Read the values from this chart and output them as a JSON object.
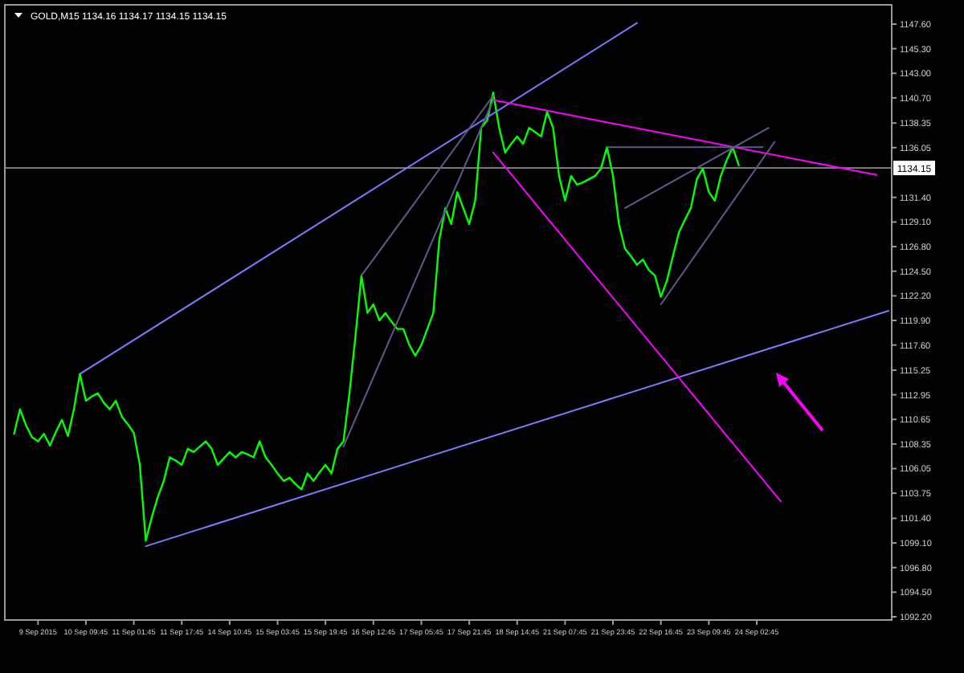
{
  "chart_data": {
    "type": "line",
    "title": "GOLD,M15  1134.16 1134.17 1134.15 1134.15",
    "ylim": [
      1091.9,
      1149.4
    ],
    "categories": [
      null,
      null,
      null,
      null,
      null,
      "9 Sep 2015",
      null,
      null,
      null,
      null,
      null,
      null,
      null,
      "10 Sep 09:45",
      null,
      null,
      null,
      null,
      null,
      null,
      null,
      "11 Sep 01:45",
      null,
      null,
      null,
      null,
      null,
      null,
      null,
      "11 Sep 17:45",
      null,
      null,
      null,
      null,
      null,
      null,
      null,
      "14 Sep 10:45",
      null,
      null,
      null,
      null,
      null,
      null,
      null,
      "15 Sep 03:45",
      null,
      null,
      null,
      null,
      null,
      null,
      null,
      "15 Sep 19:45",
      null,
      null,
      null,
      null,
      null,
      null,
      null,
      "16 Sep 12:45",
      null,
      null,
      null,
      null,
      null,
      null,
      null,
      "17 Sep 05:45",
      null,
      null,
      null,
      null,
      null,
      null,
      null,
      "17 Sep 21:45",
      null,
      null,
      null,
      null,
      null,
      null,
      null,
      "18 Sep 14:45",
      null,
      null,
      null,
      null,
      null,
      null,
      null,
      "21 Sep 07:45",
      null,
      null,
      null,
      null,
      null,
      null,
      null,
      "21 Sep 23:45",
      null,
      null,
      null,
      null,
      null,
      null,
      null,
      "22 Sep 16:45",
      null,
      null,
      null,
      null,
      null,
      null,
      null,
      "23 Sep 09:45",
      null,
      null,
      null,
      null,
      null,
      null,
      null,
      "24 Sep 02:45",
      null,
      null,
      null,
      null,
      null,
      null,
      null,
      null,
      null,
      null,
      null,
      null,
      null,
      null,
      null,
      null,
      null,
      null,
      null,
      null,
      null,
      null
    ],
    "yticks": [
      {
        "value": 1147.6,
        "label": "1147.60"
      },
      {
        "value": 1145.3,
        "label": "1145.30"
      },
      {
        "value": 1143,
        "label": "1143.00"
      },
      {
        "value": 1140.7,
        "label": "1140.70"
      },
      {
        "value": 1138.35,
        "label": "1138.35"
      },
      {
        "value": 1136.05,
        "label": "1136.05"
      },
      {
        "value": 1131.4,
        "label": "1131.40"
      },
      {
        "value": 1129.1,
        "label": "1129.10"
      },
      {
        "value": 1126.8,
        "label": "1126.80"
      },
      {
        "value": 1124.5,
        "label": "1124.50"
      },
      {
        "value": 1122.2,
        "label": "1122.20"
      },
      {
        "value": 1119.9,
        "label": "1119.90"
      },
      {
        "value": 1117.6,
        "label": "1117.60"
      },
      {
        "value": 1115.25,
        "label": "1115.25"
      },
      {
        "value": 1112.95,
        "label": "1112.95"
      },
      {
        "value": 1110.65,
        "label": "1110.65"
      },
      {
        "value": 1108.35,
        "label": "1108.35"
      },
      {
        "value": 1106.05,
        "label": "1106.05"
      },
      {
        "value": 1103.75,
        "label": "1103.75"
      },
      {
        "value": 1101.4,
        "label": "1101.40"
      },
      {
        "value": 1099.1,
        "label": "1099.10"
      },
      {
        "value": 1096.8,
        "label": "1096.80"
      },
      {
        "value": 1094.5,
        "label": "1094.50"
      },
      {
        "value": 1092.2,
        "label": "1092.20"
      }
    ],
    "ref_lines": [
      {
        "axis": "y",
        "value": 1134.15,
        "label": "1134.15",
        "color": "#8c8c8c"
      }
    ],
    "series": [
      {
        "color": "#00ff00",
        "values": [
          null,
          1109.3,
          1111.6,
          1110.1,
          1109.0,
          1108.6,
          1109.3,
          1108.2,
          1109.5,
          1110.6,
          1109.1,
          1111.6,
          1114.9,
          1112.4,
          1112.8,
          1113.1,
          1112.2,
          1111.6,
          1112.4,
          1110.9,
          1110.2,
          1109.4,
          1106.4,
          1099.3,
          1101.5,
          1103.4,
          1104.9,
          1107.1,
          1106.8,
          1106.4,
          1107.9,
          1107.6,
          1108.1,
          1108.6,
          1107.9,
          1106.4,
          1107.0,
          1107.6,
          1107.1,
          1107.6,
          1107.4,
          1107.1,
          1108.6,
          1107.1,
          1106.4,
          1105.6,
          1104.9,
          1105.2,
          1104.6,
          1104.1,
          1105.6,
          1104.9,
          1105.7,
          1106.4,
          1105.6,
          1107.9,
          1108.6,
          1113.1,
          1118.4,
          1124.1,
          1120.6,
          1121.4,
          1119.9,
          1120.6,
          1119.8,
          1119.1,
          1119.1,
          1117.6,
          1116.6,
          1117.6,
          1119.1,
          1120.6,
          1127.4,
          1130.4,
          1128.9,
          1131.9,
          1130.4,
          1128.9,
          1131.1,
          1137.9,
          1138.6,
          1141.2,
          1137.9,
          1135.6,
          1136.4,
          1137.1,
          1136.4,
          1137.9,
          1137.5,
          1137.1,
          1139.4,
          1137.9,
          1133.4,
          1131.1,
          1133.4,
          1132.6,
          1132.8,
          1133.1,
          1133.4,
          1134.1,
          1136.1,
          1133.4,
          1128.9,
          1126.6,
          1125.9,
          1125.1,
          1125.6,
          1124.6,
          1124.1,
          1122.1,
          1123.6,
          1125.9,
          1128.1,
          1129.3,
          1130.4,
          1133.1,
          1134.1,
          1131.9,
          1131.1,
          1133.4,
          1134.9,
          1136.1,
          1134.4,
          null,
          null,
          null,
          null,
          null,
          null,
          null,
          null,
          null,
          null,
          null,
          null,
          null,
          null,
          null,
          null,
          null,
          null,
          null,
          null,
          null,
          null,
          null,
          null,
          null
        ]
      },
      {
        "color": "#7b7bff",
        "values": [
          null,
          null,
          null,
          null,
          null,
          null,
          null,
          null,
          null,
          null,
          null,
          null,
          1114.9,
          null,
          null,
          null,
          null,
          null,
          null,
          null,
          null,
          null,
          null,
          null,
          null,
          null,
          null,
          null,
          null,
          null,
          null,
          null,
          null,
          null,
          null,
          null,
          null,
          null,
          null,
          null,
          null,
          null,
          null,
          null,
          null,
          null,
          null,
          null,
          null,
          null,
          null,
          null,
          null,
          null,
          null,
          null,
          null,
          null,
          null,
          null,
          null,
          null,
          null,
          null,
          null,
          null,
          null,
          null,
          null,
          null,
          null,
          null,
          null,
          null,
          null,
          null,
          null,
          null,
          null,
          null,
          null,
          null,
          null,
          null,
          null,
          null,
          null,
          null,
          null,
          null,
          null,
          null,
          null,
          null,
          null,
          null,
          null,
          null,
          null,
          null,
          null,
          null,
          null,
          null,
          null,
          1147.7,
          null,
          null,
          null,
          null,
          null,
          null,
          null,
          null,
          null,
          null,
          null,
          null,
          null,
          null,
          null,
          null,
          null,
          null,
          null,
          null,
          null,
          null,
          null,
          null,
          null,
          null,
          null,
          null,
          null,
          null,
          null,
          null,
          null,
          null,
          null,
          null,
          null,
          null,
          null,
          null,
          null,
          null
        ]
      },
      {
        "color": "#7b7bff",
        "values": [
          null,
          null,
          null,
          null,
          null,
          null,
          null,
          null,
          null,
          null,
          null,
          null,
          null,
          null,
          null,
          null,
          null,
          null,
          null,
          null,
          null,
          null,
          null,
          1098.8,
          null,
          null,
          null,
          null,
          null,
          null,
          null,
          null,
          null,
          null,
          null,
          null,
          null,
          null,
          null,
          null,
          null,
          null,
          null,
          null,
          null,
          null,
          null,
          null,
          null,
          null,
          null,
          null,
          null,
          null,
          null,
          null,
          null,
          null,
          null,
          null,
          null,
          null,
          null,
          null,
          null,
          null,
          null,
          null,
          null,
          null,
          null,
          null,
          null,
          null,
          null,
          null,
          null,
          null,
          null,
          null,
          null,
          null,
          null,
          null,
          null,
          null,
          null,
          null,
          null,
          null,
          null,
          null,
          null,
          null,
          null,
          null,
          null,
          null,
          null,
          null,
          null,
          null,
          null,
          null,
          null,
          null,
          null,
          null,
          null,
          null,
          null,
          null,
          null,
          null,
          null,
          null,
          null,
          null,
          null,
          null,
          null,
          null,
          null,
          null,
          null,
          null,
          null,
          null,
          null,
          null,
          null,
          null,
          null,
          null,
          null,
          null,
          null,
          null,
          null,
          null,
          null,
          null,
          null,
          null,
          null,
          null,
          null,
          1120.8
        ]
      },
      {
        "color": "#ff00ff",
        "values": [
          null,
          null,
          null,
          null,
          null,
          null,
          null,
          null,
          null,
          null,
          null,
          null,
          null,
          null,
          null,
          null,
          null,
          null,
          null,
          null,
          null,
          null,
          null,
          null,
          null,
          null,
          null,
          null,
          null,
          null,
          null,
          null,
          null,
          null,
          null,
          null,
          null,
          null,
          null,
          null,
          null,
          null,
          null,
          null,
          null,
          null,
          null,
          null,
          null,
          null,
          null,
          null,
          null,
          null,
          null,
          null,
          null,
          null,
          null,
          null,
          null,
          null,
          null,
          null,
          null,
          null,
          null,
          null,
          null,
          null,
          null,
          null,
          null,
          null,
          null,
          null,
          null,
          null,
          null,
          null,
          null,
          1140.5,
          null,
          null,
          null,
          null,
          null,
          null,
          null,
          null,
          null,
          null,
          null,
          null,
          null,
          null,
          null,
          null,
          null,
          null,
          null,
          null,
          null,
          null,
          null,
          null,
          null,
          null,
          null,
          null,
          null,
          null,
          null,
          null,
          null,
          null,
          null,
          null,
          null,
          null,
          null,
          null,
          null,
          null,
          null,
          null,
          null,
          null,
          null,
          null,
          null,
          null,
          null,
          null,
          null,
          null,
          null,
          null,
          null,
          null,
          null,
          null,
          null,
          null,
          null,
          1133.5,
          null,
          null
        ]
      },
      {
        "color": "#ff00ff",
        "values": [
          null,
          null,
          null,
          null,
          null,
          null,
          null,
          null,
          null,
          null,
          null,
          null,
          null,
          null,
          null,
          null,
          null,
          null,
          null,
          null,
          null,
          null,
          null,
          null,
          null,
          null,
          null,
          null,
          null,
          null,
          null,
          null,
          null,
          null,
          null,
          null,
          null,
          null,
          null,
          null,
          null,
          null,
          null,
          null,
          null,
          null,
          null,
          null,
          null,
          null,
          null,
          null,
          null,
          null,
          null,
          null,
          null,
          null,
          null,
          null,
          null,
          null,
          null,
          null,
          null,
          null,
          null,
          null,
          null,
          null,
          null,
          null,
          null,
          null,
          null,
          null,
          null,
          null,
          null,
          null,
          null,
          1135.6,
          null,
          null,
          null,
          null,
          null,
          null,
          null,
          null,
          null,
          null,
          null,
          null,
          null,
          null,
          null,
          null,
          null,
          null,
          null,
          null,
          null,
          null,
          null,
          null,
          null,
          null,
          null,
          null,
          null,
          null,
          null,
          null,
          null,
          null,
          null,
          null,
          null,
          null,
          null,
          null,
          null,
          null,
          null,
          null,
          null,
          null,
          null,
          1103.0,
          null,
          null,
          null,
          null,
          null,
          null,
          null,
          null,
          null,
          null,
          null,
          null,
          null,
          null,
          null,
          null,
          null,
          null
        ]
      },
      {
        "color": "#5c5c8a",
        "values": [
          null,
          null,
          null,
          null,
          null,
          null,
          null,
          null,
          null,
          null,
          null,
          null,
          null,
          null,
          null,
          null,
          null,
          null,
          null,
          null,
          null,
          null,
          null,
          null,
          null,
          null,
          null,
          null,
          null,
          null,
          null,
          null,
          null,
          null,
          null,
          null,
          null,
          null,
          null,
          null,
          null,
          null,
          null,
          null,
          null,
          null,
          null,
          null,
          null,
          null,
          null,
          null,
          null,
          null,
          null,
          null,
          null,
          null,
          null,
          1124.1,
          null,
          null,
          null,
          null,
          null,
          null,
          null,
          null,
          null,
          null,
          null,
          null,
          null,
          null,
          null,
          null,
          null,
          null,
          null,
          null,
          null,
          1140.9,
          null,
          null,
          null,
          null,
          null,
          null,
          null,
          null,
          null,
          null,
          null,
          null,
          null,
          null,
          null,
          null,
          null,
          null,
          null,
          null,
          null,
          null,
          null,
          null,
          null,
          null,
          null,
          null,
          null,
          null,
          null,
          null,
          null,
          null,
          null,
          null,
          null,
          null,
          null,
          null,
          null,
          null,
          null,
          null,
          null,
          null,
          null,
          null,
          null,
          null,
          null,
          null,
          null,
          null,
          null,
          null,
          null,
          null,
          null,
          null,
          null,
          null,
          null,
          null,
          null,
          null
        ]
      },
      {
        "color": "#5c5c8a",
        "values": [
          null,
          null,
          null,
          null,
          null,
          null,
          null,
          null,
          null,
          null,
          null,
          null,
          null,
          null,
          null,
          null,
          null,
          null,
          null,
          null,
          null,
          null,
          null,
          null,
          null,
          null,
          null,
          null,
          null,
          null,
          null,
          null,
          null,
          null,
          null,
          null,
          null,
          null,
          null,
          null,
          null,
          null,
          null,
          null,
          null,
          null,
          null,
          null,
          null,
          null,
          null,
          null,
          null,
          null,
          null,
          null,
          1108.1,
          null,
          null,
          null,
          null,
          null,
          null,
          null,
          null,
          null,
          null,
          null,
          null,
          null,
          null,
          null,
          null,
          null,
          null,
          null,
          null,
          null,
          null,
          null,
          null,
          1140.5,
          null,
          null,
          null,
          null,
          null,
          null,
          null,
          null,
          null,
          null,
          null,
          null,
          null,
          null,
          null,
          null,
          null,
          null,
          null,
          null,
          null,
          null,
          null,
          null,
          null,
          null,
          null,
          null,
          null,
          null,
          null,
          null,
          null,
          null,
          null,
          null,
          null,
          null,
          null,
          null,
          null,
          null,
          null,
          null,
          null,
          null,
          null,
          null,
          null,
          null,
          null,
          null,
          null,
          null,
          null,
          null,
          null,
          null,
          null,
          null,
          null,
          null,
          null,
          null,
          null,
          null
        ]
      },
      {
        "color": "#5c5c8a",
        "values": [
          null,
          null,
          null,
          null,
          null,
          null,
          null,
          null,
          null,
          null,
          null,
          null,
          null,
          null,
          null,
          null,
          null,
          null,
          null,
          null,
          null,
          null,
          null,
          null,
          null,
          null,
          null,
          null,
          null,
          null,
          null,
          null,
          null,
          null,
          null,
          null,
          null,
          null,
          null,
          null,
          null,
          null,
          null,
          null,
          null,
          null,
          null,
          null,
          null,
          null,
          null,
          null,
          null,
          null,
          null,
          null,
          null,
          null,
          null,
          null,
          null,
          null,
          null,
          null,
          null,
          null,
          null,
          null,
          null,
          null,
          null,
          null,
          null,
          null,
          null,
          null,
          null,
          null,
          null,
          null,
          null,
          null,
          null,
          null,
          null,
          null,
          null,
          null,
          null,
          null,
          null,
          null,
          null,
          null,
          null,
          null,
          null,
          null,
          null,
          null,
          1136.1,
          null,
          null,
          null,
          null,
          null,
          null,
          null,
          null,
          null,
          null,
          null,
          null,
          null,
          null,
          null,
          null,
          null,
          null,
          null,
          null,
          null,
          null,
          null,
          null,
          null,
          1136.1,
          null,
          null,
          null,
          null,
          null,
          null,
          null,
          null,
          null,
          null,
          null,
          null,
          null,
          null,
          null,
          null,
          null,
          null,
          null,
          null,
          null
        ]
      },
      {
        "color": "#5c5c8a",
        "values": [
          null,
          null,
          null,
          null,
          null,
          null,
          null,
          null,
          null,
          null,
          null,
          null,
          null,
          null,
          null,
          null,
          null,
          null,
          null,
          null,
          null,
          null,
          null,
          null,
          null,
          null,
          null,
          null,
          null,
          null,
          null,
          null,
          null,
          null,
          null,
          null,
          null,
          null,
          null,
          null,
          null,
          null,
          null,
          null,
          null,
          null,
          null,
          null,
          null,
          null,
          null,
          null,
          null,
          null,
          null,
          null,
          null,
          null,
          null,
          null,
          null,
          null,
          null,
          null,
          null,
          null,
          null,
          null,
          null,
          null,
          null,
          null,
          null,
          null,
          null,
          null,
          null,
          null,
          null,
          null,
          null,
          null,
          null,
          null,
          null,
          null,
          null,
          null,
          null,
          null,
          null,
          null,
          null,
          null,
          null,
          null,
          null,
          null,
          null,
          null,
          null,
          null,
          null,
          1130.4,
          null,
          null,
          null,
          null,
          null,
          null,
          null,
          null,
          null,
          null,
          null,
          null,
          null,
          null,
          null,
          null,
          null,
          null,
          null,
          null,
          null,
          null,
          null,
          1137.9,
          null,
          null,
          null,
          null,
          null,
          null,
          null,
          null,
          null,
          null,
          null,
          null,
          null,
          null,
          null,
          null,
          null,
          null,
          null,
          null
        ]
      },
      {
        "color": "#5c5c8a",
        "values": [
          null,
          null,
          null,
          null,
          null,
          null,
          null,
          null,
          null,
          null,
          null,
          null,
          null,
          null,
          null,
          null,
          null,
          null,
          null,
          null,
          null,
          null,
          null,
          null,
          null,
          null,
          null,
          null,
          null,
          null,
          null,
          null,
          null,
          null,
          null,
          null,
          null,
          null,
          null,
          null,
          null,
          null,
          null,
          null,
          null,
          null,
          null,
          null,
          null,
          null,
          null,
          null,
          null,
          null,
          null,
          null,
          null,
          null,
          null,
          null,
          null,
          null,
          null,
          null,
          null,
          null,
          null,
          null,
          null,
          null,
          null,
          null,
          null,
          null,
          null,
          null,
          null,
          null,
          null,
          null,
          null,
          null,
          null,
          null,
          null,
          null,
          null,
          null,
          null,
          null,
          null,
          null,
          null,
          null,
          null,
          null,
          null,
          null,
          null,
          null,
          null,
          null,
          null,
          null,
          null,
          null,
          null,
          null,
          null,
          1121.4,
          null,
          null,
          null,
          null,
          null,
          null,
          null,
          null,
          null,
          null,
          null,
          null,
          null,
          null,
          null,
          null,
          null,
          null,
          1136.6,
          null,
          null,
          null,
          null,
          null,
          null,
          null,
          null,
          null,
          null,
          null,
          null,
          null,
          null,
          null,
          null,
          null,
          null,
          null
        ]
      }
    ]
  }
}
